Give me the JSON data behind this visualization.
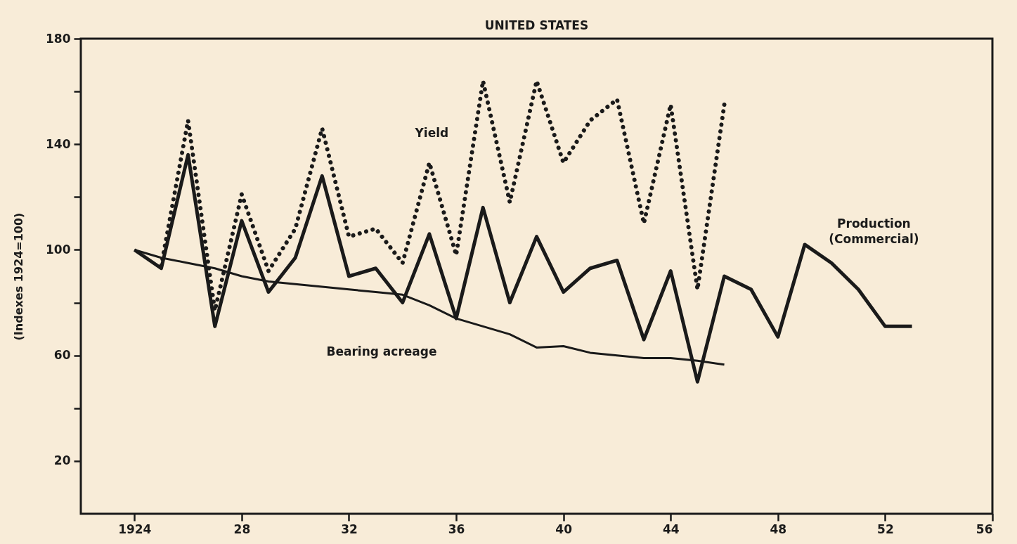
{
  "chart_data": {
    "type": "line",
    "title": "UNITED STATES",
    "ylabel": "(Indexes 1924=100)",
    "xlim": [
      1922,
      1956
    ],
    "ylim": [
      0,
      180
    ],
    "xticks": [
      1924,
      {
        "value": 1928,
        "label": "28"
      },
      {
        "value": 1932,
        "label": "32"
      },
      {
        "value": 1936,
        "label": "36"
      },
      {
        "value": 1940,
        "label": "40"
      },
      {
        "value": 1944,
        "label": "44"
      },
      {
        "value": 1948,
        "label": "48"
      },
      {
        "value": 1952,
        "label": "52"
      },
      {
        "value": 1956,
        "label": "56"
      }
    ],
    "yticks": [
      20,
      {
        "value": 40,
        "label": null
      },
      60,
      {
        "value": 80,
        "label": null
      },
      100,
      {
        "value": 120,
        "label": null
      },
      140,
      {
        "value": 160,
        "label": null
      },
      180
    ],
    "grid": false,
    "series": [
      {
        "color": "#1a1a1a",
        "line_style": "solid",
        "x": [
          1924,
          1925,
          1926,
          1927,
          1928,
          1929,
          1930,
          1931,
          1932,
          1933,
          1934,
          1935,
          1936,
          1937,
          1938,
          1939,
          1940,
          1941,
          1942,
          1943,
          1944,
          1945,
          1946,
          1947,
          1948,
          1949,
          1950,
          1951,
          1952,
          1953
        ],
        "values": [
          100,
          93,
          136,
          71,
          111,
          84,
          97,
          128,
          90,
          93,
          80,
          106,
          74,
          116,
          80,
          105,
          84,
          93,
          96,
          66,
          92,
          50,
          90,
          85,
          67,
          102,
          95,
          85,
          71,
          71
        ]
      },
      {
        "color": "#1a1a1a",
        "line_style": "dotted",
        "x": [
          1925,
          1926,
          1927,
          1928,
          1929,
          1930,
          1931,
          1932,
          1933,
          1934,
          1935,
          1936,
          1937,
          1938,
          1939,
          1940,
          1941,
          1942,
          1943,
          1944,
          1945,
          1946
        ],
        "values": [
          94,
          149,
          77,
          121,
          92,
          108,
          146,
          105,
          108,
          95,
          133,
          98,
          164,
          118,
          164,
          133,
          149,
          157,
          110,
          155,
          85,
          155
        ]
      },
      {
        "color": "#1a1a1a",
        "line_style": "solid",
        "x": [
          1924,
          1925,
          1926,
          1927,
          1928,
          1929,
          1930,
          1931,
          1932,
          1933,
          1934,
          1935,
          1936,
          1937,
          1938,
          1939,
          1940,
          1941,
          1942,
          1943,
          1944,
          1945,
          1946
        ],
        "values": [
          100,
          97,
          95,
          93,
          90,
          88,
          87,
          86,
          85,
          84,
          83,
          79,
          74,
          71,
          68,
          63,
          63.5,
          61,
          60,
          59,
          59,
          58,
          56.5
        ]
      }
    ],
    "annotations": [
      "Yield",
      "Production\n(Commercial)",
      "Bearing acreage"
    ]
  }
}
